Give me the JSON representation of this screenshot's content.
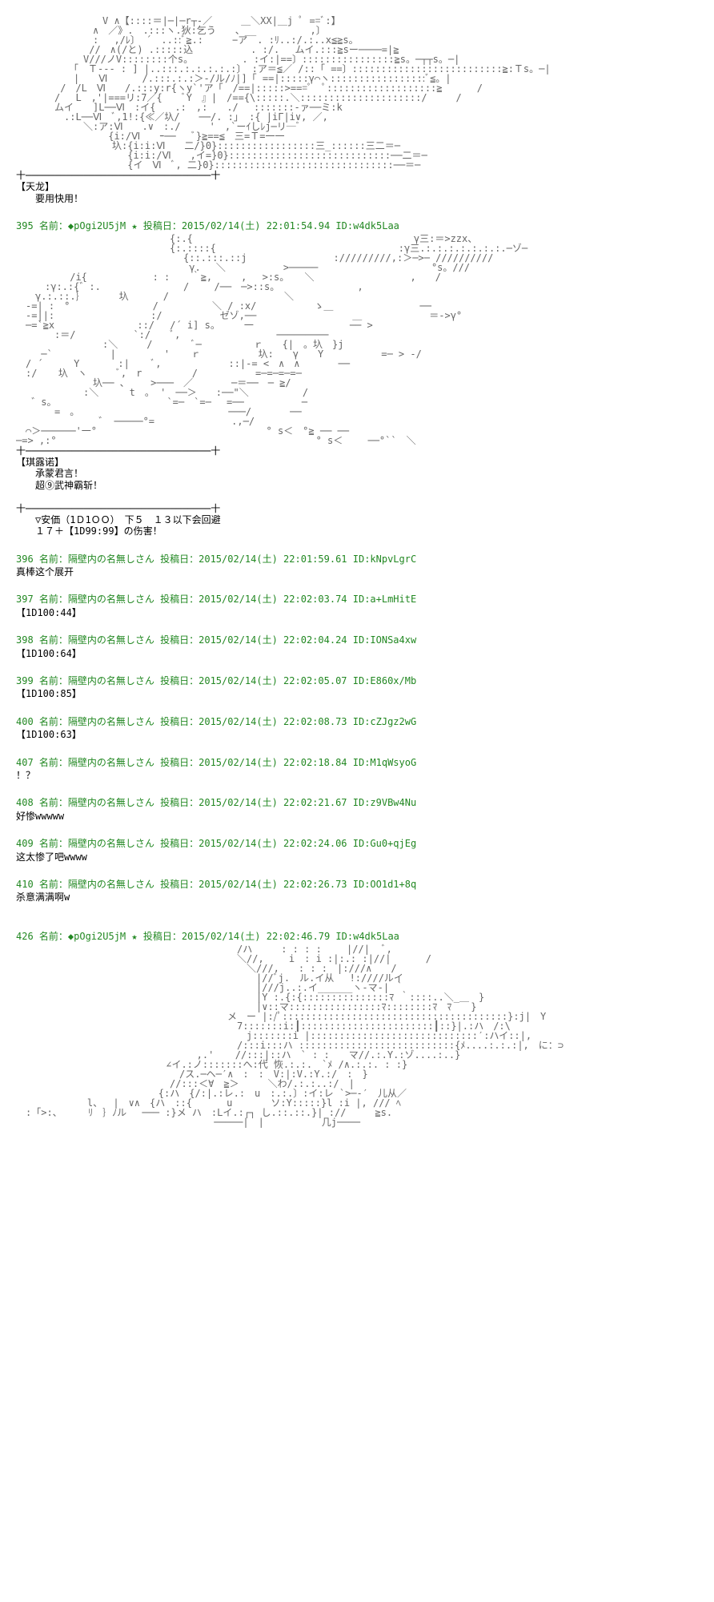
{
  "ascii_art_1": "　　　　　　　　　V ∧【::::＝|─|─r┬-／　　　＿＼XX|＿j ﾟ ==ﾞ:】\n　　　　　　　　∧　／》.　.:::ヽ.狄:乞う　　、__　　　　　 ,〕\n　　　　　　　　: 　,/ﾚ〕 ´　..::ﾞ≧.:　　　−ア　. :ﾘ..:/.:..х≦≧s。\n　　　　　　　 //　∧(/と) .:::::込　　　　　　. :/.　 ムイ.:::≧sー────=|≧\n　　　　　　　V///ノV::::::::个s。　　　　　 . :イ:|==〕::::::::::::::::≧s。─┬┬s。─|\n　　　　　　「　Ｔ--- : ] |..:::.:.:.:.:.:〕 :ア＝≦／ /::「 ==〕::::::::::::::::::::::::::≧:Ｔs。─|\n　　　　　　|　　Ⅵ　　 　/.:::.:.:＞-/ル/ﾉ|]「 ==|:::::γ⌒ヽ:::::::::::::::::ﾞ≦。|\n　　　　 /　/L　Ⅵ　　/.:::y:r{ヽy`'ア「　/==|:::::>===ﾟ　ﾟ:::::::::::::::::::≧ 　　　/\n　　　　/　 L　,'|===リ:7／{　　ﾞY　』|　/=={\\:::::.＼:::::::::::::::::::::/　　　/\n　　　　ムイ　　]L──Ⅵ　:イ{　　.:　,:　　./　 :::::::-ァ──ミ:k\n　　　　　.:L──Ⅵ　ﾞ,1!:{≪／圦/　　──/. :」 :{ |iΓ|i∨, ／,\n　　　　　　　＼:ア:Ⅵ　　.∨　:./　　　'　,`ーｲしﾚj─リ─ﾞ\n　　　 　　　　　　{i:/Ⅵ　　ｰ── 　ﾞ}≧==≦　三=Ｔ=一一\n　　　　　　　　　　圦:{i:i:Ⅵ　　二/}0}:::::::::::::::::三_::::::三二＝─\n　　　　　　　　　　　 {i:i:/Ⅵ　　,イ=}0}::::::::::::::::::::::::::::──二＝─\n　　　　　　　　　　　 {イ　Ⅵ　ﾞ, 二}0}:::::::::::::::::::::::::::::::──＝─",
  "divider": "十────────────────────────────────十",
  "speaker_1": "【天龙】",
  "speaker_1_line": "　　要用快用！",
  "post_395_header": "395 名前：◆pOgi2U5jM ★ 投稿日：2015/02/14(土) 22:01:54.94 ID:w4dk5Laa",
  "ascii_art_2": "　　　　　　　　　　　　　　　　{:.{　　　　　　　　　　　　　　　　　　　　　　　γ三:＝>zzx、\n　　　　　　　　　　　　　　　　{:.::::{　　　　　　　　　　　　　　　　　　　:γ三.:.:.:.:.:.:.:.─ゾ─\n　　　　 　 　 　 　 　 　 　 　 {::.:::.::j　　　　　　　　　://///////,:＞─>─ //////////\n　　　 　 　 　 　 　 　 　 　 　 γ.　 ＼　　　　　　>─────　　　　　　　　 　 　 °s。///\n　　　　　 /i{　　　 　 　 : : 　 ｀≧,　　　,　 >:s。 　＼　　　　　　　　　　,　　/\n　　　:γ:.:{゛:.　　　　　　　　 / 　　/──　─>::s。　　　　　　　　 ,\n　　γ.:.::.｝　　　　圦　　　 /　　　　　　　　　　　　＼\n　-=| :　°　 　　　　　　　/　　　 　　＼ / :x/　　　　　　ゝ＿　　　　　　　　　──\n　-=||:　　　　　　　　　　:/　　　　　　ゼゾ,──　　　　　　　　　　＿　　　　　　　＝->γ°\n　─=`≧x 　　　　　　　　::/　 /´ i] s。　　　一　　　　　　　　　　── >\n　　　　:＝/　　　　　　`:/　　ﾞ,　　　　　　　　　　─────────\n　　　　　　　　　:＼　　　/　　　　ﾞ─ 　 　 　 ｒ　　{|　。圦　}j\n　　 ─`　　　　　　|　　　　　' 　 ｒ　　　　　　圦:　　γ　　Y　　　　　　=─ > -/\n　/ ´　 　 Y　　　　:| 　 ﾞ,　　　　　　　::|-= <　∧　∧　　　　──\n　:/ 　 圦　ヽ　　　ﾞ,　r 　　　　 /　　　　　　=─=─=─=─\n　　　　　　　　圦── 、 　 >───　／　　　　─＝──　─ ≧/\n　　　　　　　:＼　 　 t　。 '　──＞　　:──\"＼　　　　　 /\n 　゛s。　　　　　　　　　　　　`=─　`=─ 　=──　　　　　　─\n　　　　=　。　　　　　　　　　　　　　　　　───/　　　　──\n　　　　　　　　 ゛ ─────°=　 　 　 　 　 .,─/\n　⌒＞──────'一°　 　 　 　 　 　 　 　 　 　 　 ° s＜　°≧ ── ──\n─=> ,:°　　　　　　　　　　　　　　　　　　　　　　　　　　　° s＜　　 ──°``　＼",
  "speaker_2": "【琪露诺】",
  "speaker_2_line_1": "　　承蒙君言！",
  "speaker_2_line_2": "　　超⑨武神霸斩！",
  "ankaa_line_1": "　　▽安価（1Ｄ1ＯＯ）　下５　１３以下会回避",
  "ankaa_line_2": "　　１７＋【1D99:99】の伤害！",
  "post_396_header": "396 名前：隔壁内の名無しさん 投稿日：2015/02/14(土) 22:01:59.61 ID:kNpvLgrC",
  "post_396_body": "真棒这个展开",
  "post_397_header": "397 名前：隔壁内の名無しさん 投稿日：2015/02/14(土) 22:02:03.74 ID:a+LmHitE",
  "post_397_body": "【1D100:44】",
  "post_398_header": "398 名前：隔壁内の名無しさん 投稿日：2015/02/14(土) 22:02:04.24 ID:IONSa4xw",
  "post_398_body": "【1D100:64】",
  "post_399_header": "399 名前：隔壁内の名無しさん 投稿日：2015/02/14(土) 22:02:05.07 ID:E860x/Mb",
  "post_399_body": "【1D100:85】",
  "post_400_header": "400 名前：隔壁内の名無しさん 投稿日：2015/02/14(土) 22:02:08.73 ID:cZJgz2wG",
  "post_400_body": "【1D100:63】",
  "post_407_header": "407 名前：隔壁内の名無しさん 投稿日：2015/02/14(土) 22:02:18.84 ID:M1qWsyoG",
  "post_407_body": "！？",
  "post_408_header": "408 名前：隔壁内の名無しさん 投稿日：2015/02/14(土) 22:02:21.67 ID:z9VBw4Nu",
  "post_408_body": "好惨wwwww",
  "post_409_header": "409 名前：隔壁内の名無しさん 投稿日：2015/02/14(土) 22:02:24.06 ID:Gu0+qjEg",
  "post_409_body": "这太惨了吧wwww",
  "post_410_header": "410 名前：隔壁内の名無しさん 投稿日：2015/02/14(土) 22:02:26.73 ID:OO1d1+8q",
  "post_410_body": "杀意满满啊w",
  "post_426_header": "426 名前：◆pOgi2U5jM ★ 投稿日：2015/02/14(土) 22:02:46.79 ID:w4dk5Laa",
  "ascii_art_3": "　　　　　　　　　　　　　　　　　　　　　　　/ハ　　　: : : :　　 |//|　 ﾞ,\n　　　　　　　　　　　　　　　　　　　　　　　＼//,　　 i　: i :|:.: :|//|　　　 /\n　　　　　　　　　　　　　　　　　　　　　　　　＼///,　　: : :　|:///∧　　/\n　　　　　　　　　　　　　　　　　　　　　　　　　|//ﾞj.　ル.イ从　 !:////ルイ\n　　　　　　　　　　　　　　　　　　　　　　　　　|///j..:.イ______ヽ-マ-| ｀\n　　　　　　　　　　　　　　　　　　　　　　　　　|Y :.{:{:::::::::::::::ﾏ ｀::::..＼_＿　}\n　　　　　　　　　　　　　　　　　　　　　　　　　|∨::マ::::::::::::::::ﾏ::::::::ﾏ　ﾏ　　}\n　　　　　　　　　　　　　　　　　　　　　　メ　ー |:/ﾟ:::::::::::::::::::::::::::::::::::::::}:j|　Y\n　　　　　　　　　　　　　　　　　　　　　　　7:::::::i:┃:::::::::::::::::::::::┃::}|.:ハ　/:\\\n　　　　　　　　　　　　　　　　　　　　　　　　j:::::::i |:::::::::::::::::::::::::::::′:ハイ::|,\n　　　　　　　　　　　　　　　　　　　　　　　/:::i:::ハ :::::::::::::::::::::::::::{ﾒ....:.:.:|,　に：⊃\n　　　　　　　　　　　　　　　 　 　 ,.' 　 //:::|::ハ　` : :　　マ//.:.Y.:ゾ....:..}\n　　　　　　　　　　　　　　　 ∠イ.:ノ:::::::へ:代 恢.:.:.　`ﾒ /∧.:.:. : :}\n　　　　　　　　　　　　　　　　　/ス.─ヘ─′∧　:　:　V:|:V.:Y.:/　:　}\n　　　　　　　　　　　　　　　　//:::＜∀　≧＞　　　＼わ/.:.:..:/　|\n　　　 　 　 　 　 　 　 　 {:ハ　{/:|.:レ.:　u　:.:.〕:イ:レ `>─-′　儿从／\n　　 　 　 　 l、　 |　∨∧　{ハ　::{　　　 u　　　　ソ:Y:::::}l :i |, /// ﾍ\n　:「>:、　 　 ﾘ　｝ﾉル　 ─── :}メ ハ　:Lイ.:┌┐ し.::.::.}| ://　　　≧s.\n　　　　　　　　　　　　　　　　　　　　 ─────|　|　　　　　　几j────"
}
